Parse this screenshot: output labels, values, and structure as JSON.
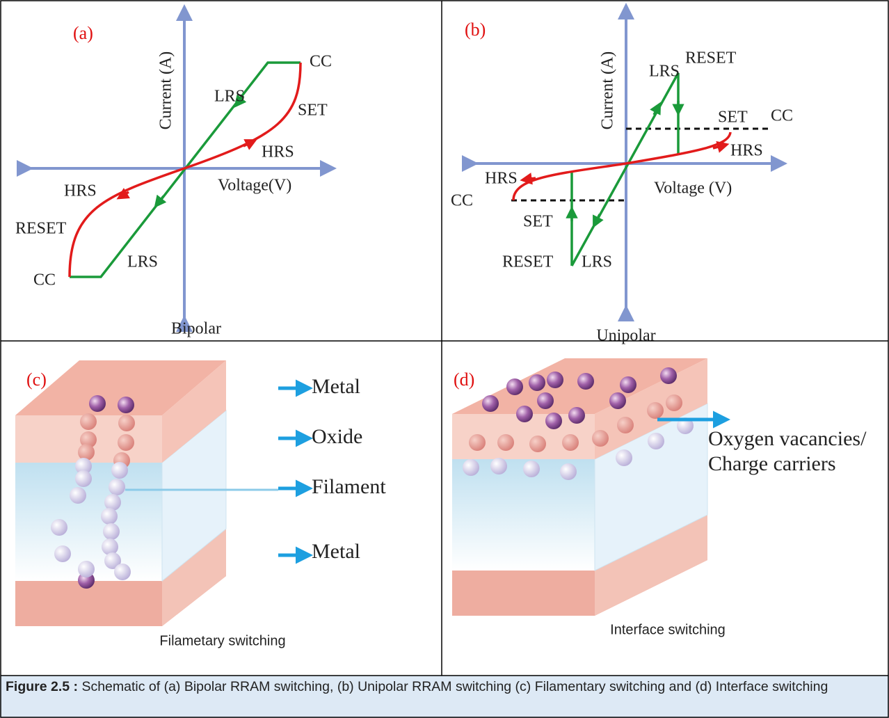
{
  "panels": [
    {
      "label": "(a)",
      "y_axis": "Current (A)",
      "x_axis": "Voltage(V)",
      "texts": [
        "CC",
        "LRS",
        "SET",
        "HRS",
        "HRS",
        "RESET",
        "CC",
        "LRS"
      ],
      "caption": "Bipolar"
    },
    {
      "label": "(b)",
      "y_axis": "Current (A)",
      "x_axis": "Voltage (V)",
      "texts": [
        "RESET",
        "LRS",
        "SET",
        "CC",
        "HRS",
        "HRS",
        "CC",
        "SET",
        "RESET",
        "LRS"
      ],
      "caption": "Unipolar"
    },
    {
      "label": "(c)",
      "texts": [
        "Metal",
        "Oxide",
        "Filament",
        "Metal"
      ],
      "caption": "Filametary switching"
    },
    {
      "label": "(d)",
      "texts": [
        "Oxygen vacancies/",
        "Charge carriers"
      ],
      "caption": "Interface switching"
    }
  ],
  "figure_caption": {
    "label": "Figure 2.5 :",
    "text": "Schematic of (a) Bipolar RRAM switching,  (b) Unipolar RRAM switching (c) Filamentary switching and (d) Interface switching"
  }
}
